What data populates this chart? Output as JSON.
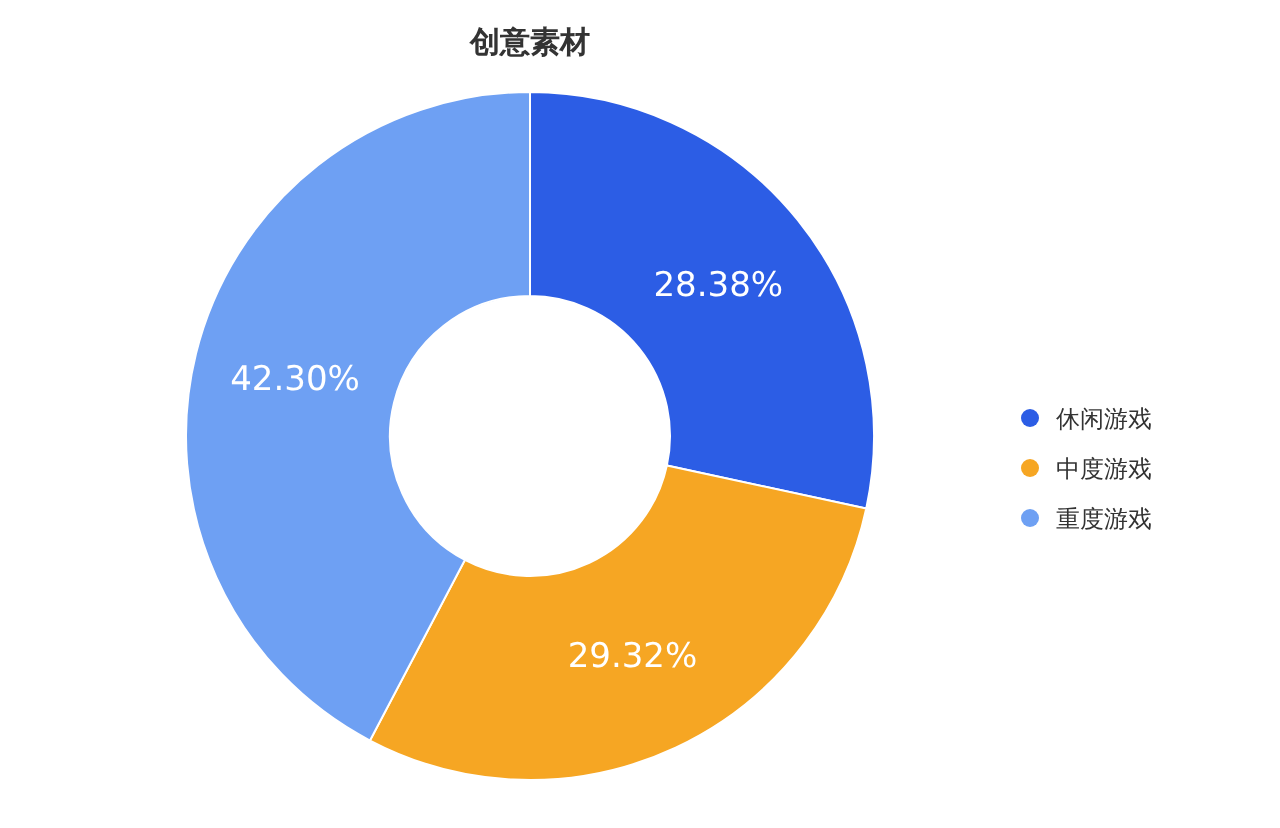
{
  "chart_data": {
    "type": "donut",
    "title": "创意素材",
    "categories": [
      "休闲游戏",
      "中度游戏",
      "重度游戏"
    ],
    "values": [
      28.38,
      29.32,
      42.3
    ],
    "colors": [
      "#2c5de5",
      "#f6a623",
      "#6ea0f3"
    ],
    "value_labels": [
      "28.38%",
      "29.32%",
      "42.30%"
    ],
    "legend": "right"
  }
}
